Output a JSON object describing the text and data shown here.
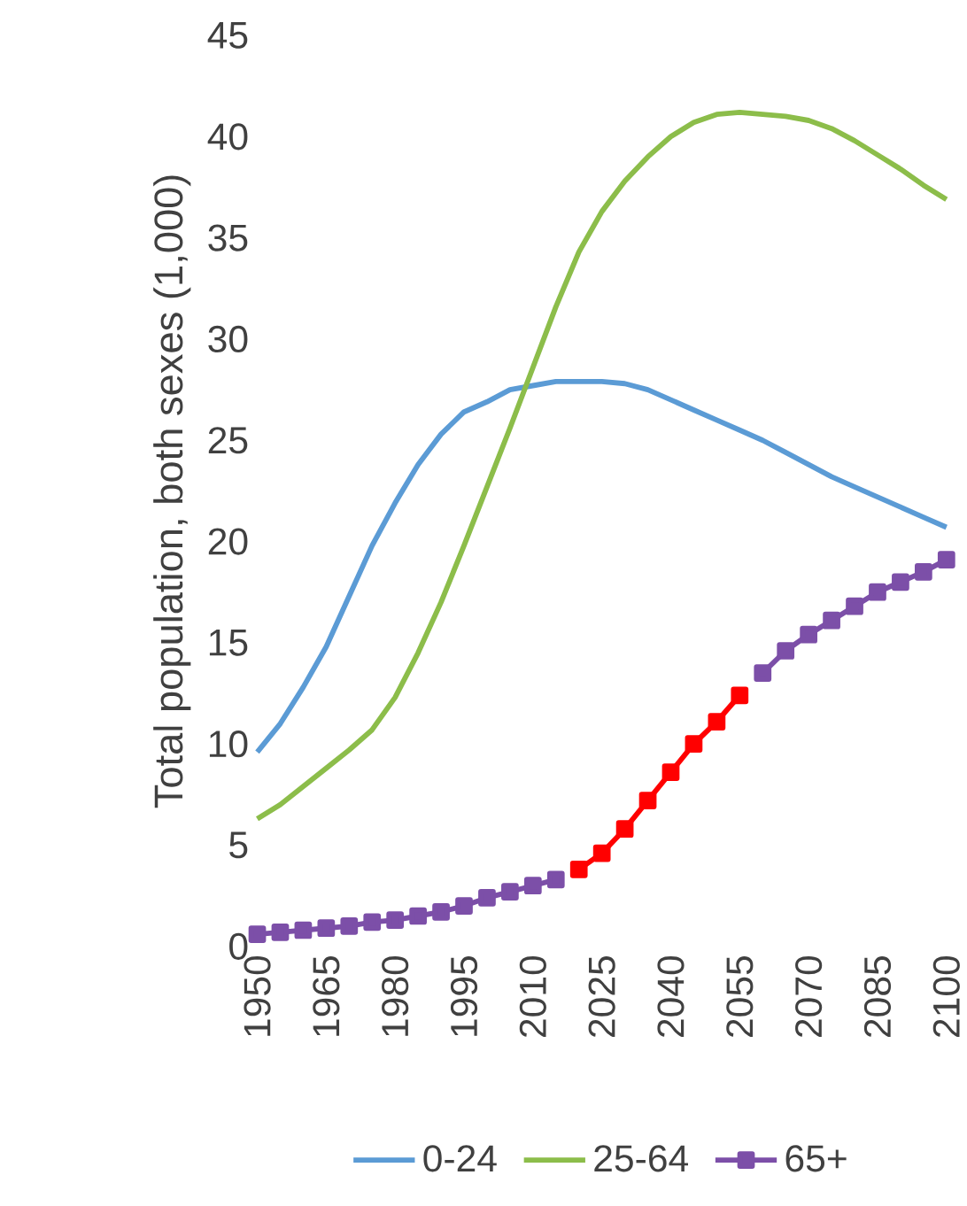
{
  "chart_data": {
    "type": "line",
    "ylabel": "Total population, both sexes (1,000)",
    "x": [
      1950,
      1955,
      1960,
      1965,
      1970,
      1975,
      1980,
      1985,
      1990,
      1995,
      2000,
      2005,
      2010,
      2015,
      2020,
      2025,
      2030,
      2035,
      2040,
      2045,
      2050,
      2055,
      2060,
      2065,
      2070,
      2075,
      2080,
      2085,
      2090,
      2095,
      2100
    ],
    "xlim": [
      1950,
      2100
    ],
    "xticks": [
      1950,
      1965,
      1980,
      1995,
      2010,
      2025,
      2040,
      2055,
      2070,
      2085,
      2100
    ],
    "ylim": [
      0,
      45
    ],
    "yticks": [
      0,
      5,
      10,
      15,
      20,
      25,
      30,
      35,
      40,
      45
    ],
    "legend": "bottom",
    "grid": false,
    "series": [
      {
        "name": "0-24",
        "color": "#5b9bd5",
        "marker": "none",
        "values": [
          9.6,
          11.0,
          12.8,
          14.8,
          17.3,
          19.8,
          21.9,
          23.8,
          25.3,
          26.4,
          26.9,
          27.5,
          27.7,
          27.9,
          27.9,
          27.9,
          27.8,
          27.5,
          27.0,
          26.5,
          26.0,
          25.5,
          25.0,
          24.4,
          23.8,
          23.2,
          22.7,
          22.2,
          21.7,
          21.2,
          20.7
        ]
      },
      {
        "name": "25-64",
        "color": "#8cbd4a",
        "marker": "none",
        "values": [
          6.3,
          7.0,
          7.9,
          8.8,
          9.7,
          10.7,
          12.3,
          14.5,
          17.0,
          19.8,
          22.7,
          25.6,
          28.6,
          31.6,
          34.3,
          36.3,
          37.8,
          39.0,
          40.0,
          40.7,
          41.1,
          41.2,
          41.1,
          41.0,
          40.8,
          40.4,
          39.8,
          39.1,
          38.4,
          37.6,
          36.9
        ]
      },
      {
        "name": "65+",
        "color": "#7c4fa8",
        "marker": "square",
        "values": [
          0.6,
          0.7,
          0.8,
          0.9,
          1.0,
          1.2,
          1.3,
          1.5,
          1.7,
          2.0,
          2.4,
          2.7,
          3.0,
          3.3,
          null,
          null,
          null,
          null,
          null,
          null,
          null,
          null,
          13.5,
          14.6,
          15.4,
          16.1,
          16.8,
          17.5,
          18.0,
          18.5,
          19.1
        ]
      },
      {
        "color": "#ff0000",
        "marker": "square",
        "x": [
          2020,
          2025,
          2030,
          2035,
          2040,
          2045,
          2050,
          2055
        ],
        "values": [
          3.8,
          4.6,
          5.8,
          7.2,
          8.6,
          10.0,
          11.1,
          12.4
        ]
      }
    ]
  }
}
